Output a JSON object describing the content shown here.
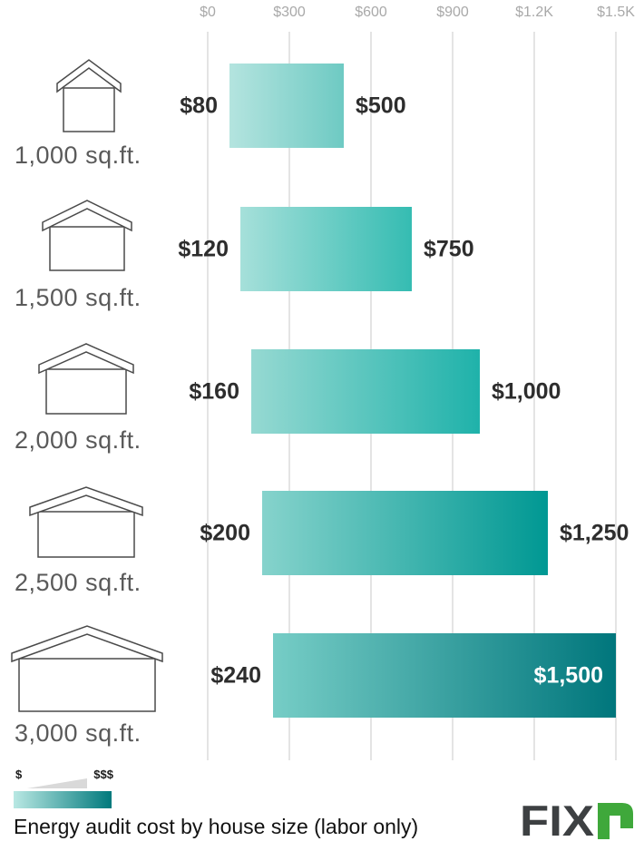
{
  "chart_data": {
    "type": "bar",
    "orientation": "horizontal-range",
    "title": "Energy audit cost by house size (labor only)",
    "xlim": [
      0,
      1500
    ],
    "grid": true,
    "x_tick_labels": [
      "$0",
      "$300",
      "$600",
      "$900",
      "$1.2K",
      "$1.5K"
    ],
    "x_tick_values": [
      0,
      300,
      600,
      900,
      1200,
      1500
    ],
    "categories": [
      "1,000 sq.ft.",
      "1,500 sq.ft.",
      "2,000 sq.ft.",
      "2,500 sq.ft.",
      "3,000 sq.ft."
    ],
    "bars": [
      {
        "category": "1,000 sq.ft.",
        "low": 80,
        "high": 500,
        "low_label": "$80",
        "high_label": "$500",
        "color_start": "#b4e4df",
        "color_end": "#6ecac3"
      },
      {
        "category": "1,500 sq.ft.",
        "low": 120,
        "high": 750,
        "low_label": "$120",
        "high_label": "$750",
        "color_start": "#a6e0da",
        "color_end": "#35bcb2"
      },
      {
        "category": "2,000 sq.ft.",
        "low": 160,
        "high": 1000,
        "low_label": "$160",
        "high_label": "$1,000",
        "color_start": "#96d9d2",
        "color_end": "#1fb2aa"
      },
      {
        "category": "2,500 sq.ft.",
        "low": 200,
        "high": 1250,
        "low_label": "$200",
        "high_label": "$1,250",
        "color_start": "#86d3cc",
        "color_end": "#009893"
      },
      {
        "category": "3,000 sq.ft.",
        "low": 240,
        "high": 1500,
        "low_label": "$240",
        "high_label": "$1,500",
        "color_start": "#76cdc6",
        "color_end": "#00767c"
      }
    ],
    "legend": {
      "min_symbol": "$",
      "max_symbol": "$$$",
      "gradient_start": "#b9e8e3",
      "gradient_end": "#00797c"
    }
  },
  "logo": {
    "text": "FIX",
    "suffix": "r"
  },
  "colors": {
    "grid": "#e4e4e4",
    "axis_text": "#a9a9a9",
    "value_text": "#2d2d2d",
    "size_text": "#5a5a5a",
    "house_stroke": "#4a4a4a",
    "wedge": "#d9d9d9",
    "logo_dark": "#3d4042",
    "logo_green": "#3fa83b"
  }
}
